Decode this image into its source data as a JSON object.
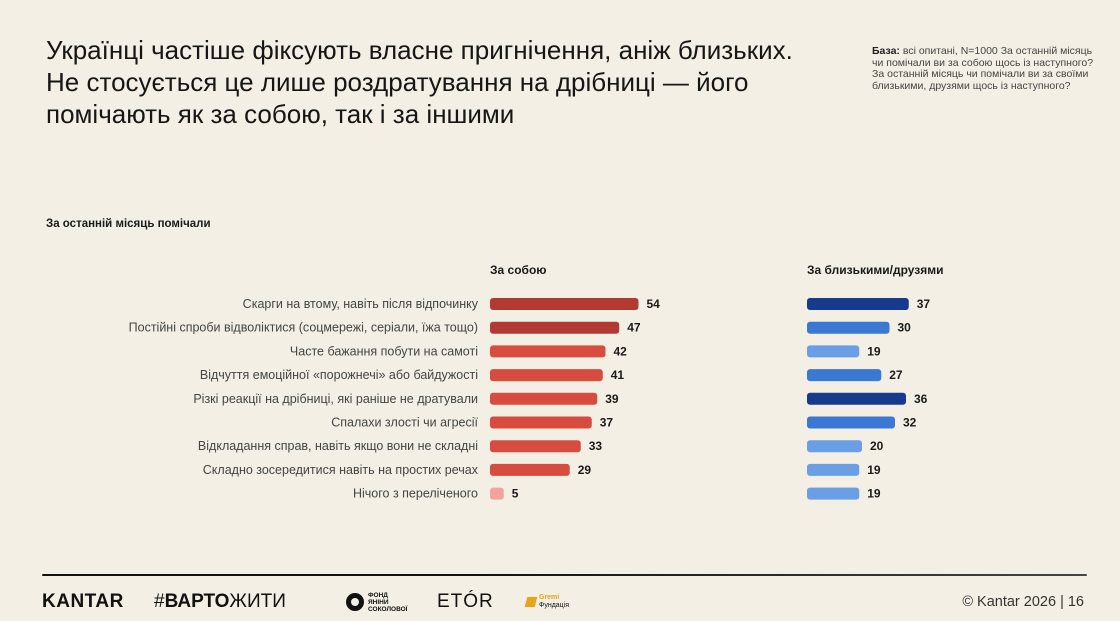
{
  "header": {
    "title": "Українці частіше фіксують власне пригнічення, аніж близьких. Не стосується це лише  роздратування на дрібниці — його помічають як за собою, так і за іншими",
    "base_label": "База:",
    "base_text": " всі опитані, N=1000 За останній місяць чи помічали ви за собою щось із наступного? За останній місяць чи помічали ви за своїми близькими, друзями щось із наступного?"
  },
  "chart_data": {
    "type": "bar",
    "title": "За останній місяць помічали",
    "categories": [
      "Скарги на втому, навіть після відпочинку",
      "Постійні спроби відволіктися (соцмережі, серіали, їжа тощо)",
      "Часте бажання побути на самоті",
      "Відчуття емоційної «порожнечі» або байдужості",
      "Різкі реакції на дрібниці, які раніше не дратували",
      "Спалахи злості чи агресії",
      "Відкладання справ, навіть якщо вони не складні",
      "Складно зосередитися навіть на простих речах",
      "Нічого з переліченого"
    ],
    "series": [
      {
        "name": "За собою",
        "values": [
          54,
          47,
          42,
          41,
          39,
          37,
          33,
          29,
          5
        ],
        "colors": [
          "#b33a32",
          "#b33a32",
          "#d84c40",
          "#d84c40",
          "#d84c40",
          "#d84c40",
          "#d84c40",
          "#d84c40",
          "#f4a39a"
        ]
      },
      {
        "name": "За близькими/друзями",
        "values": [
          37,
          30,
          19,
          27,
          36,
          32,
          20,
          19,
          19
        ],
        "colors": [
          "#163a8c",
          "#3a78d4",
          "#6a9fe6",
          "#3a78d4",
          "#163a8c",
          "#3a78d4",
          "#6a9fe6",
          "#6a9fe6",
          "#6a9fe6"
        ]
      }
    ]
  },
  "footer": {
    "kantar": "KANTAR",
    "varto_hash": "#",
    "varto_bold": "ВАРТО",
    "varto_rest": "ЖИТИ",
    "fond_line1": "ФОНД",
    "fond_line2": "ЯНІНИ",
    "fond_line3": "СОКОЛОВОЇ",
    "etor": "ETÓR",
    "gremi_line1": "Gremi",
    "gremi_line2": "Фундація",
    "copyright": "© Kantar 2026 | 16"
  },
  "colors": {
    "background": "#f3efe4",
    "self_dark": "#b33a32",
    "self_mid": "#d84c40",
    "self_light": "#f4a39a",
    "others_dark": "#163a8c",
    "others_mid": "#3a78d4",
    "others_light": "#6a9fe6"
  }
}
